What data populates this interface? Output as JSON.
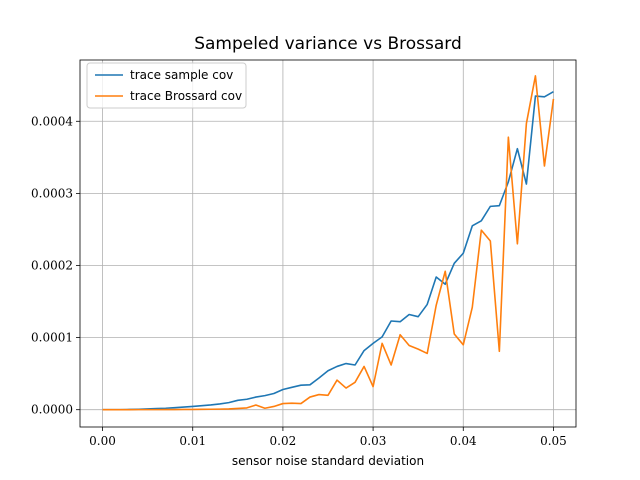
{
  "chart_data": {
    "type": "line",
    "title": "Sampeled variance vs Brossard",
    "xlabel": "sensor noise standard deviation",
    "ylabel": "",
    "xlim": [
      -0.0025,
      0.0525
    ],
    "ylim": [
      -2.4e-05,
      0.000485
    ],
    "xticks": [
      0.0,
      0.01,
      0.02,
      0.03,
      0.04,
      0.05
    ],
    "xtick_labels": [
      "0.00",
      "0.01",
      "0.02",
      "0.03",
      "0.04",
      "0.05"
    ],
    "yticks": [
      0.0,
      0.0001,
      0.0002,
      0.0003,
      0.0004
    ],
    "ytick_labels": [
      "0.0000",
      "0.0001",
      "0.0002",
      "0.0003",
      "0.0004"
    ],
    "grid": true,
    "legend_position": "top-left",
    "x": [
      0.0,
      0.001,
      0.002,
      0.003,
      0.004,
      0.005,
      0.006,
      0.007,
      0.008,
      0.009,
      0.01,
      0.011,
      0.012,
      0.013,
      0.014,
      0.015,
      0.016,
      0.017,
      0.018,
      0.019,
      0.02,
      0.021,
      0.022,
      0.023,
      0.024,
      0.025,
      0.026,
      0.027,
      0.028,
      0.029,
      0.03,
      0.031,
      0.032,
      0.033,
      0.034,
      0.035,
      0.036,
      0.037,
      0.038,
      0.039,
      0.04,
      0.041,
      0.042,
      0.043,
      0.044,
      0.045,
      0.046,
      0.047,
      0.048,
      0.049,
      0.05
    ],
    "series": [
      {
        "name": "trace sample cov",
        "color": "#1f77b4",
        "values": [
          0.0,
          0.0,
          1e-07,
          3e-07,
          6e-07,
          1e-06,
          1.5e-06,
          2e-06,
          2.8e-06,
          3.6e-06,
          4.5e-06,
          5.5e-06,
          6.6e-06,
          8e-06,
          9.8e-06,
          1.3e-05,
          1.45e-05,
          1.75e-05,
          1.95e-05,
          2.25e-05,
          2.8e-05,
          3.1e-05,
          3.4e-05,
          3.45e-05,
          4.4e-05,
          5.4e-05,
          6e-05,
          6.4e-05,
          6.2e-05,
          8.2e-05,
          9.2e-05,
          0.000101,
          0.000123,
          0.000122,
          0.000132,
          0.000129,
          0.000146,
          0.000184,
          0.000174,
          0.000203,
          0.000217,
          0.000255,
          0.000262,
          0.000282,
          0.000283,
          0.000316,
          0.000362,
          0.000313,
          0.000435,
          0.000434,
          0.000441
        ]
      },
      {
        "name": "trace Brossard cov",
        "color": "#ff7f0e",
        "values": [
          0.0,
          0.0,
          0.0,
          0.0,
          1e-07,
          1e-07,
          1e-07,
          2e-07,
          2e-07,
          3e-07,
          3e-07,
          5e-07,
          6e-07,
          8e-07,
          1e-06,
          1.8e-06,
          2.5e-06,
          6.5e-06,
          2e-06,
          4.5e-06,
          8.5e-06,
          9e-06,
          8.5e-06,
          1.75e-05,
          2.1e-05,
          2e-05,
          4.1e-05,
          3e-05,
          3.8e-05,
          6e-05,
          3.2e-05,
          9.2e-05,
          6.2e-05,
          0.000104,
          8.9e-05,
          8.4e-05,
          7.8e-05,
          0.000145,
          0.000192,
          0.000105,
          9e-05,
          0.000142,
          0.000249,
          0.000234,
          8.1e-05,
          0.000378,
          0.00023,
          0.000397,
          0.000463,
          0.000338,
          0.000431
        ]
      }
    ]
  }
}
